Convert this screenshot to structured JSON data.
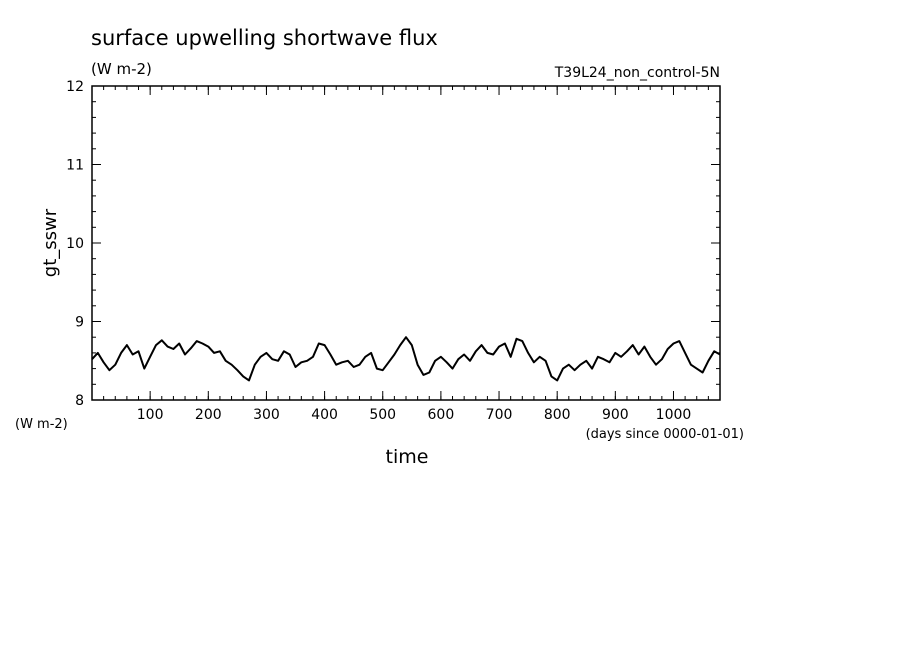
{
  "chart_data": {
    "type": "line",
    "title": "surface upwelling shortwave flux",
    "subtitle": "(W m-2)",
    "run_label": "T39L24_non_control-5N",
    "xlabel": "time",
    "x_units": "(days since 0000-01-01)",
    "ylabel": "gt_sswr",
    "y_units": "(W m-2)",
    "xlim": [
      0,
      1080
    ],
    "ylim": [
      8,
      12
    ],
    "x_ticks": [
      100,
      200,
      300,
      400,
      500,
      600,
      700,
      800,
      900,
      1000
    ],
    "y_ticks": [
      8,
      9,
      10,
      11,
      12
    ],
    "grid": false,
    "series": [
      {
        "x": [
          0,
          10,
          20,
          30,
          40,
          50,
          60,
          70,
          80,
          90,
          100,
          110,
          120,
          130,
          140,
          150,
          160,
          170,
          180,
          190,
          200,
          210,
          220,
          230,
          240,
          250,
          260,
          270,
          280,
          290,
          300,
          310,
          320,
          330,
          340,
          350,
          360,
          370,
          380,
          390,
          400,
          410,
          420,
          430,
          440,
          450,
          460,
          470,
          480,
          490,
          500,
          510,
          520,
          530,
          540,
          550,
          560,
          570,
          580,
          590,
          600,
          610,
          620,
          630,
          640,
          650,
          660,
          670,
          680,
          690,
          700,
          710,
          720,
          730,
          740,
          750,
          760,
          770,
          780,
          790,
          800,
          810,
          820,
          830,
          840,
          850,
          860,
          870,
          880,
          890,
          900,
          910,
          920,
          930,
          940,
          950,
          960,
          970,
          980,
          990,
          1000,
          1010,
          1020,
          1030,
          1040,
          1050,
          1060,
          1070,
          1080
        ],
        "y": [
          8.52,
          8.6,
          8.48,
          8.38,
          8.45,
          8.6,
          8.7,
          8.58,
          8.62,
          8.4,
          8.55,
          8.7,
          8.76,
          8.68,
          8.65,
          8.72,
          8.58,
          8.66,
          8.75,
          8.72,
          8.68,
          8.6,
          8.62,
          8.5,
          8.45,
          8.38,
          8.3,
          8.25,
          8.45,
          8.55,
          8.6,
          8.52,
          8.5,
          8.62,
          8.58,
          8.42,
          8.48,
          8.5,
          8.55,
          8.72,
          8.7,
          8.58,
          8.45,
          8.48,
          8.5,
          8.42,
          8.45,
          8.55,
          8.6,
          8.4,
          8.38,
          8.48,
          8.58,
          8.7,
          8.8,
          8.7,
          8.45,
          8.32,
          8.35,
          8.5,
          8.55,
          8.48,
          8.4,
          8.52,
          8.58,
          8.5,
          8.62,
          8.7,
          8.6,
          8.58,
          8.68,
          8.72,
          8.55,
          8.78,
          8.75,
          8.6,
          8.48,
          8.55,
          8.5,
          8.3,
          8.25,
          8.4,
          8.45,
          8.38,
          8.45,
          8.5,
          8.4,
          8.55,
          8.52,
          8.48,
          8.6,
          8.55,
          8.62,
          8.7,
          8.58,
          8.68,
          8.55,
          8.45,
          8.52,
          8.65,
          8.72,
          8.75,
          8.6,
          8.45,
          8.4,
          8.35,
          8.5,
          8.62,
          8.58
        ]
      }
    ]
  }
}
